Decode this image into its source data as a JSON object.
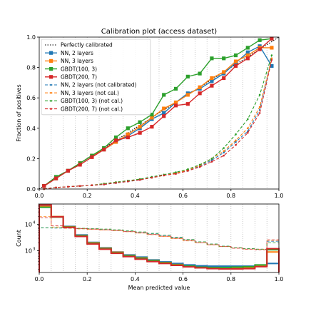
{
  "chart_data": [
    {
      "type": "line",
      "title": "Calibration plot (access dataset)",
      "xlabel": "",
      "ylabel": "Fraction of positives",
      "xlim": [
        0,
        1
      ],
      "ylim": [
        0,
        1
      ],
      "xticks": [
        "0.0",
        "0.2",
        "0.4",
        "0.6",
        "0.8",
        "1.0"
      ],
      "yticks": [
        "0.0",
        "0.2",
        "0.4",
        "0.6",
        "0.8",
        "1.0"
      ],
      "grid": "vertical-dotted",
      "legend": "top-left",
      "series": [
        {
          "name": "Perfectly calibrated",
          "color": "#000000",
          "style": "dotted",
          "marker": "none",
          "x": [
            0,
            1
          ],
          "y": [
            0,
            1
          ]
        },
        {
          "name": "NN, 2 layers",
          "color": "#1f77b4",
          "style": "solid",
          "marker": "square",
          "x": [
            0.02,
            0.07,
            0.12,
            0.17,
            0.22,
            0.27,
            0.32,
            0.37,
            0.42,
            0.47,
            0.52,
            0.57,
            0.62,
            0.67,
            0.72,
            0.77,
            0.82,
            0.87,
            0.92,
            0.97
          ],
          "y": [
            0.02,
            0.07,
            0.12,
            0.17,
            0.22,
            0.26,
            0.31,
            0.35,
            0.4,
            0.46,
            0.5,
            0.57,
            0.63,
            0.66,
            0.71,
            0.76,
            0.83,
            0.9,
            0.94,
            0.81
          ]
        },
        {
          "name": "NN, 3 layers",
          "color": "#ff7f0e",
          "style": "solid",
          "marker": "square",
          "x": [
            0.02,
            0.07,
            0.12,
            0.17,
            0.22,
            0.27,
            0.32,
            0.37,
            0.42,
            0.47,
            0.52,
            0.57,
            0.62,
            0.67,
            0.72,
            0.77,
            0.82,
            0.87,
            0.92,
            0.97
          ],
          "y": [
            0.02,
            0.07,
            0.12,
            0.17,
            0.22,
            0.26,
            0.31,
            0.36,
            0.41,
            0.47,
            0.53,
            0.57,
            0.62,
            0.67,
            0.73,
            0.77,
            0.84,
            0.88,
            0.93,
            0.93
          ]
        },
        {
          "name": "GBDT(100, 3)",
          "color": "#2ca02c",
          "style": "solid",
          "marker": "square",
          "x": [
            0.02,
            0.07,
            0.12,
            0.17,
            0.22,
            0.27,
            0.32,
            0.37,
            0.42,
            0.47,
            0.52,
            0.57,
            0.62,
            0.67,
            0.72,
            0.77,
            0.82,
            0.87,
            0.92,
            0.97
          ],
          "y": [
            0.02,
            0.08,
            0.12,
            0.17,
            0.22,
            0.27,
            0.34,
            0.4,
            0.44,
            0.49,
            0.62,
            0.66,
            0.74,
            0.76,
            0.86,
            0.86,
            0.88,
            0.93,
            0.98,
            0.99
          ]
        },
        {
          "name": "GBDT(200, 7)",
          "color": "#d62728",
          "style": "solid",
          "marker": "square",
          "x": [
            0.02,
            0.07,
            0.12,
            0.17,
            0.22,
            0.27,
            0.32,
            0.37,
            0.42,
            0.47,
            0.52,
            0.57,
            0.62,
            0.67,
            0.72,
            0.77,
            0.82,
            0.87,
            0.92,
            0.97
          ],
          "y": [
            0.02,
            0.07,
            0.12,
            0.16,
            0.21,
            0.26,
            0.32,
            0.34,
            0.37,
            0.41,
            0.48,
            0.55,
            0.56,
            0.63,
            0.68,
            0.73,
            0.81,
            0.86,
            0.92,
            0.99
          ]
        },
        {
          "name": "NN, 2 layers (not calibrated)",
          "color": "#1f77b4",
          "style": "dashed",
          "marker": "dot",
          "x": [
            0.02,
            0.07,
            0.12,
            0.17,
            0.22,
            0.27,
            0.32,
            0.37,
            0.42,
            0.47,
            0.52,
            0.57,
            0.62,
            0.67,
            0.72,
            0.77,
            0.82,
            0.87,
            0.92,
            0.97
          ],
          "y": [
            0.0,
            0.01,
            0.015,
            0.02,
            0.025,
            0.03,
            0.04,
            0.05,
            0.06,
            0.075,
            0.09,
            0.105,
            0.12,
            0.15,
            0.19,
            0.24,
            0.31,
            0.38,
            0.52,
            0.86
          ]
        },
        {
          "name": "NN, 3 layers (not cal.)",
          "color": "#ff7f0e",
          "style": "dashed",
          "marker": "dot",
          "x": [
            0.02,
            0.07,
            0.12,
            0.17,
            0.22,
            0.27,
            0.32,
            0.37,
            0.42,
            0.47,
            0.52,
            0.57,
            0.62,
            0.67,
            0.72,
            0.77,
            0.82,
            0.87,
            0.92,
            0.97
          ],
          "y": [
            0.0,
            0.01,
            0.015,
            0.02,
            0.025,
            0.035,
            0.045,
            0.055,
            0.065,
            0.075,
            0.09,
            0.105,
            0.125,
            0.155,
            0.2,
            0.25,
            0.32,
            0.4,
            0.54,
            0.86
          ]
        },
        {
          "name": "GBDT(100, 3) (not cal.)",
          "color": "#2ca02c",
          "style": "dashed",
          "marker": "dot",
          "x": [
            0.02,
            0.07,
            0.12,
            0.17,
            0.22,
            0.27,
            0.32,
            0.37,
            0.42,
            0.47,
            0.52,
            0.57,
            0.62,
            0.67,
            0.72,
            0.77,
            0.82,
            0.87,
            0.92,
            0.97
          ],
          "y": [
            0.0,
            0.01,
            0.015,
            0.02,
            0.025,
            0.035,
            0.045,
            0.055,
            0.065,
            0.08,
            0.095,
            0.11,
            0.13,
            0.16,
            0.2,
            0.27,
            0.36,
            0.46,
            0.62,
            0.88
          ]
        },
        {
          "name": "GBDT(200, 7) (not cal.)",
          "color": "#d62728",
          "style": "dashed",
          "marker": "dot",
          "x": [
            0.02,
            0.07,
            0.12,
            0.17,
            0.22,
            0.27,
            0.32,
            0.37,
            0.42,
            0.47,
            0.52,
            0.57,
            0.62,
            0.67,
            0.72,
            0.77,
            0.82,
            0.87,
            0.92,
            0.97
          ],
          "y": [
            0.0,
            0.01,
            0.015,
            0.02,
            0.025,
            0.03,
            0.04,
            0.05,
            0.06,
            0.075,
            0.09,
            0.1,
            0.12,
            0.145,
            0.18,
            0.22,
            0.29,
            0.37,
            0.5,
            0.85
          ]
        }
      ]
    },
    {
      "type": "histogram",
      "title": "",
      "xlabel": "Mean predicted value",
      "ylabel": "Count",
      "xlim": [
        0,
        1
      ],
      "yscale": "log",
      "ylim": [
        150,
        60000
      ],
      "xticks": [
        "0.0",
        "0.2",
        "0.4",
        "0.6",
        "0.8",
        "1.0"
      ],
      "yticks": [
        {
          "label": "10",
          "sup": "4",
          "value": 10000
        },
        {
          "label": "10",
          "sup": "3",
          "value": 1000
        }
      ],
      "grid": "vertical-dotted",
      "bin_edges": [
        0,
        0.05,
        0.1,
        0.15,
        0.2,
        0.25,
        0.3,
        0.35,
        0.4,
        0.45,
        0.5,
        0.55,
        0.6,
        0.65,
        0.7,
        0.75,
        0.8,
        0.85,
        0.9,
        0.95,
        1.0
      ],
      "series": [
        {
          "name": "NN, 2 layers",
          "color": "#1f77b4",
          "style": "solid",
          "counts": [
            50000,
            20000,
            8500,
            4000,
            2100,
            1300,
            900,
            700,
            580,
            450,
            380,
            330,
            290,
            270,
            260,
            260,
            260,
            260,
            280,
            330
          ]
        },
        {
          "name": "NN, 3 layers",
          "color": "#ff7f0e",
          "style": "solid",
          "counts": [
            48000,
            20000,
            8200,
            3800,
            2000,
            1250,
            880,
            660,
            540,
            430,
            360,
            300,
            260,
            240,
            230,
            220,
            220,
            230,
            260,
            900
          ]
        },
        {
          "name": "GBDT(100, 3)",
          "color": "#2ca02c",
          "style": "solid",
          "counts": [
            45000,
            19000,
            8000,
            3700,
            1900,
            1200,
            840,
            640,
            520,
            420,
            350,
            290,
            260,
            240,
            230,
            230,
            240,
            250,
            290,
            1100
          ]
        },
        {
          "name": "GBDT(200, 7)",
          "color": "#d62728",
          "style": "solid",
          "counts": [
            55000,
            19500,
            7800,
            3500,
            1800,
            1150,
            800,
            600,
            480,
            390,
            330,
            280,
            245,
            225,
            210,
            205,
            205,
            210,
            250,
            1200
          ]
        },
        {
          "name": "NN, 2 layers (not calibrated)",
          "color": "#1f77b4",
          "style": "dashed",
          "counts": [
            7500,
            7300,
            7200,
            6900,
            6700,
            6400,
            6000,
            5500,
            5000,
            4400,
            3800,
            3100,
            2600,
            2200,
            1800,
            1500,
            1300,
            1200,
            1150,
            2300
          ]
        },
        {
          "name": "NN, 3 layers (not cal.)",
          "color": "#ff7f0e",
          "style": "dashed",
          "counts": [
            20000,
            8000,
            7200,
            6800,
            6500,
            6200,
            5800,
            5300,
            4700,
            4100,
            3500,
            2900,
            2400,
            2000,
            1700,
            1450,
            1280,
            1180,
            1150,
            2500
          ]
        },
        {
          "name": "GBDT(100, 3) (not cal.)",
          "color": "#2ca02c",
          "style": "dashed",
          "counts": [
            7500,
            7500,
            7400,
            7200,
            7000,
            6700,
            6300,
            5800,
            5200,
            4600,
            3900,
            3300,
            2700,
            2200,
            1800,
            1500,
            1300,
            1200,
            1150,
            2000
          ]
        },
        {
          "name": "GBDT(200, 7) (not cal.)",
          "color": "#d62728",
          "style": "dashed",
          "counts": [
            18000,
            9000,
            7600,
            7000,
            6700,
            6300,
            5900,
            5400,
            4800,
            4200,
            3600,
            3000,
            2500,
            2000,
            1700,
            1450,
            1250,
            1150,
            1100,
            2600
          ]
        }
      ]
    }
  ]
}
